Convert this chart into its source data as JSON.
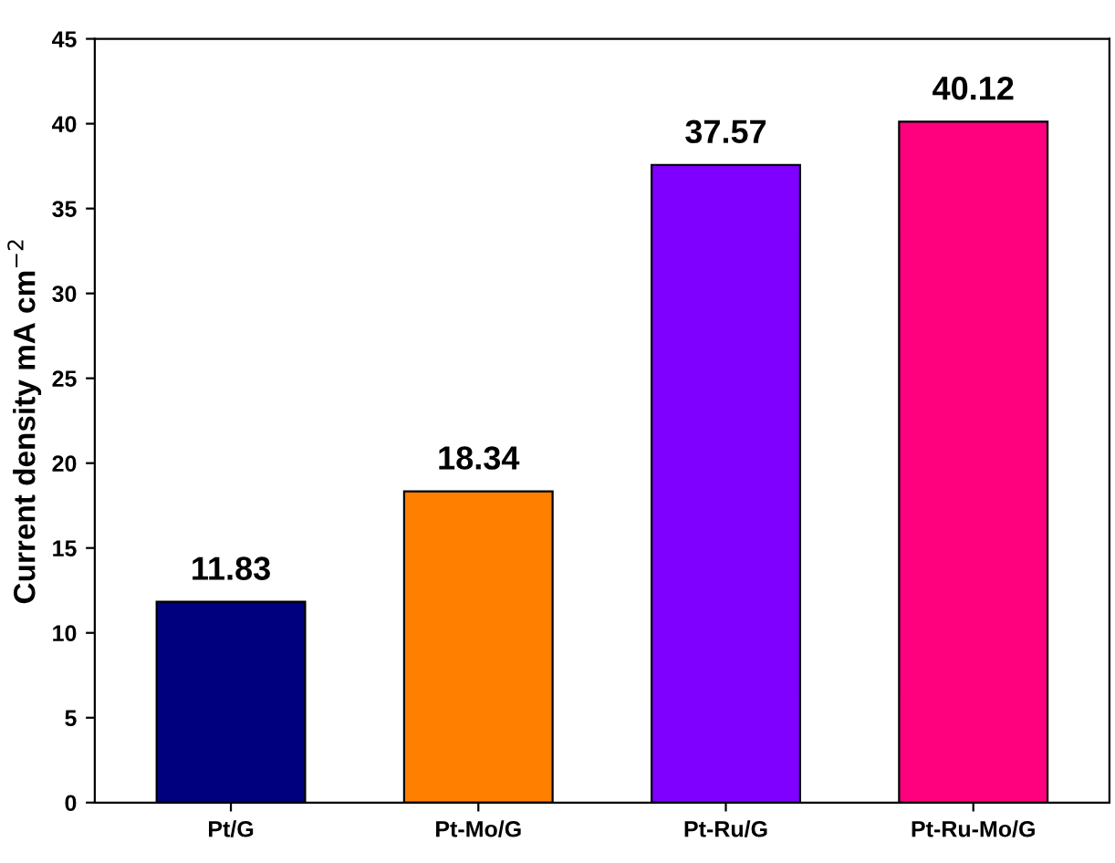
{
  "chart_data": {
    "type": "bar",
    "ylabel": "Current density mA cm$^{−2}$",
    "categories": [
      "Pt/G",
      "Pt-Mo/G",
      "Pt-Ru/G",
      "Pt-Ru-Mo/G"
    ],
    "values": [
      11.83,
      18.34,
      37.57,
      40.12
    ],
    "colors": [
      "#00007f",
      "#ff7f00",
      "#7f00ff",
      "#ff007f"
    ],
    "value_labels": [
      "11.83",
      "18.34",
      "37.57",
      "40.12"
    ],
    "ylim": [
      0,
      45
    ],
    "yticks": [
      0,
      5,
      10,
      15,
      20,
      25,
      30,
      35,
      40,
      45
    ],
    "grid": false,
    "legend": false
  }
}
